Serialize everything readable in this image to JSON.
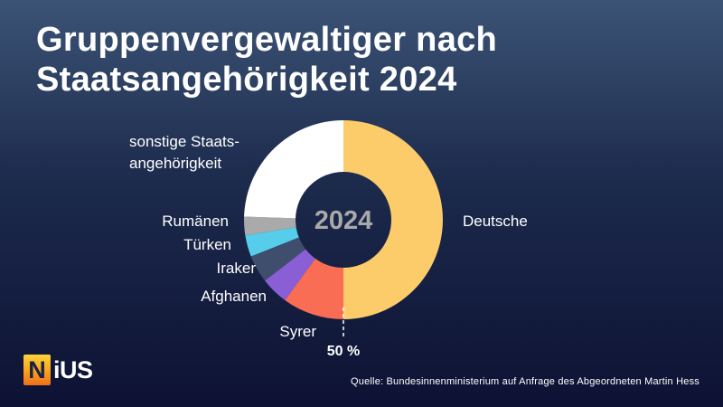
{
  "title": {
    "line1": "Gruppenvergewaltiger nach",
    "line2": "Staatsangehörigkeit 2024"
  },
  "chart_data": {
    "type": "pie",
    "donut": true,
    "center_label": "2024",
    "annotation": "50 %",
    "segments": [
      {
        "label": "Deutsche",
        "value": 50.0,
        "color": "#fccc6b"
      },
      {
        "label": "Syrer",
        "value": 10.0,
        "color": "#f96d54"
      },
      {
        "label": "Afghanen",
        "value": 4.5,
        "color": "#8a5fd6"
      },
      {
        "label": "Iraker",
        "value": 4.5,
        "color": "#3e4e6c"
      },
      {
        "label": "Türken",
        "value": 3.5,
        "color": "#56cdeb"
      },
      {
        "label": "Rumänen",
        "value": 3.0,
        "color": "#aaaaaa"
      },
      {
        "label": "sonstige Staats-\nangehörigkeit",
        "value": 24.5,
        "color": "#ffffff"
      }
    ]
  },
  "brand": {
    "logo_first": "N",
    "logo_rest": "iUS"
  },
  "source": "Quelle: Bundesinnenministerium auf Anfrage des Abgeordneten Martin Hess"
}
